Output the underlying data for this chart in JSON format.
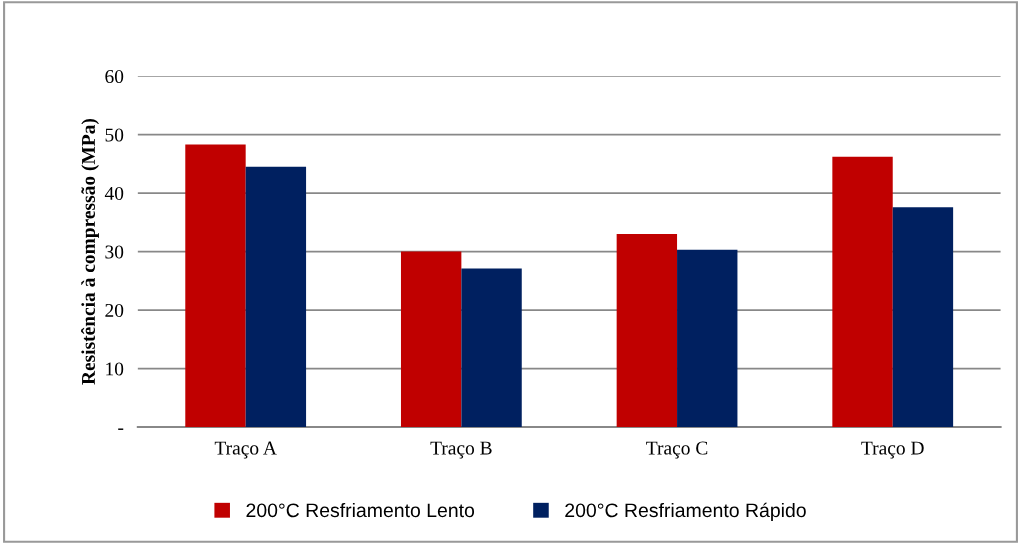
{
  "chart_data": {
    "type": "bar",
    "ylabel": "Resistência à compressão (MPa)",
    "categories": [
      "Traço A",
      "Traço B",
      "Traço C",
      "Traço D"
    ],
    "series": [
      {
        "name": "200°C Resfriamento Lento",
        "color": "#c00000",
        "values": [
          48.3,
          30.0,
          33.0,
          46.2
        ]
      },
      {
        "name": "200°C Resfriamento Rápido",
        "color": "#002060",
        "values": [
          44.5,
          27.1,
          30.3,
          37.6
        ]
      }
    ],
    "ylim": [
      0,
      60
    ],
    "yticks": [
      {
        "value": 0,
        "label": "-"
      },
      10,
      20,
      30,
      40,
      50,
      60
    ],
    "grid": "y",
    "legend": "bottom"
  }
}
